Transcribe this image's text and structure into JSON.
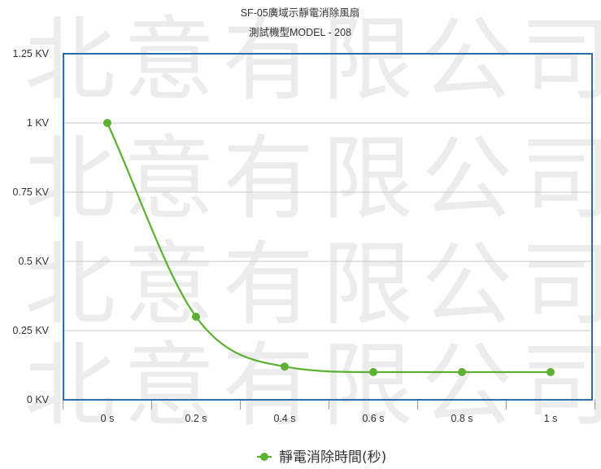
{
  "watermark": "北意有限公司 B",
  "chart_data": {
    "type": "line",
    "title": "SF-05廣域示靜電消除風扇",
    "subtitle": "測試機型MODEL - 208",
    "categories": [
      "0 s",
      "0.2 s",
      "0.4 s",
      "0.6 s",
      "0.8 s",
      "1 s"
    ],
    "y_tick_labels": [
      "0 KV",
      "0.25 KV",
      "0.5 KV",
      "0.75 KV",
      "1 KV",
      "1.25 KV"
    ],
    "y_ticks": [
      0,
      0.25,
      0.5,
      0.75,
      1,
      1.25
    ],
    "ylim": [
      0,
      1.25
    ],
    "xlabel": "",
    "ylabel": "",
    "grid": true,
    "legend_position": "bottom",
    "smooth": true,
    "series": [
      {
        "name": "靜電消除時間(秒)",
        "color": "#5cb032",
        "values": [
          1.0,
          0.3,
          0.12,
          0.1,
          0.1,
          0.1
        ]
      }
    ],
    "plot_border_color": "#2d6ca6",
    "grid_color": "#c8c8c8"
  }
}
